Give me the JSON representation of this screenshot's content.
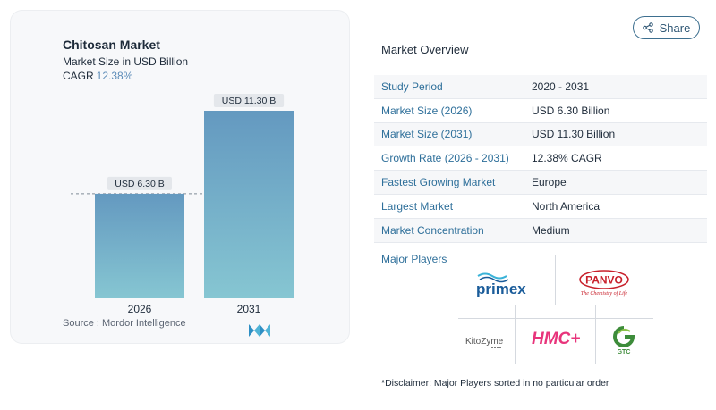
{
  "chart": {
    "title": "Chitosan Market",
    "subtitle": "Market Size in USD Billion",
    "cagr_label": "CAGR",
    "cagr_value": "12.38%",
    "source": "Source :  Mordor Intelligence"
  },
  "chart_data": {
    "type": "bar",
    "categories": [
      "2026",
      "2031"
    ],
    "values": [
      6.3,
      11.3
    ],
    "value_labels": [
      "USD 6.30 B",
      "USD 11.30 B"
    ],
    "title": "Chitosan Market",
    "ylabel": "Market Size in USD Billion",
    "xlabel": "",
    "ylim": [
      0,
      12
    ],
    "colors": {
      "top": "#6499c0",
      "bottom": "#86c6d2"
    },
    "reference_line": "dashed line at 2026 value"
  },
  "share": {
    "label": "Share"
  },
  "overview": {
    "title": "Market Overview",
    "rows": [
      {
        "key": "Study Period",
        "value": "2020 - 2031"
      },
      {
        "key": "Market Size (2026)",
        "value": "USD 6.30 Billion"
      },
      {
        "key": "Market Size (2031)",
        "value": "USD 11.30 Billion"
      },
      {
        "key": "Growth Rate (2026 - 2031)",
        "value": "12.38% CAGR"
      },
      {
        "key": "Fastest Growing Market",
        "value": "Europe"
      },
      {
        "key": "Largest Market",
        "value": "North America"
      },
      {
        "key": "Market Concentration",
        "value": "Medium"
      }
    ]
  },
  "players": {
    "label": "Major Players",
    "logos": [
      "primex",
      "PANVO",
      "KitoZyme",
      "HMC+",
      "GTC"
    ],
    "panvo_tagline": "The Chemistry of Life"
  },
  "disclaimer": "*Disclaimer: Major Players sorted in no particular order",
  "colors": {
    "accent": "#2e6f9a",
    "hmc": "#e8347b",
    "primex": "#1a5c9a",
    "panvo": "#c8202b",
    "gtc": "#3d8c3a"
  }
}
